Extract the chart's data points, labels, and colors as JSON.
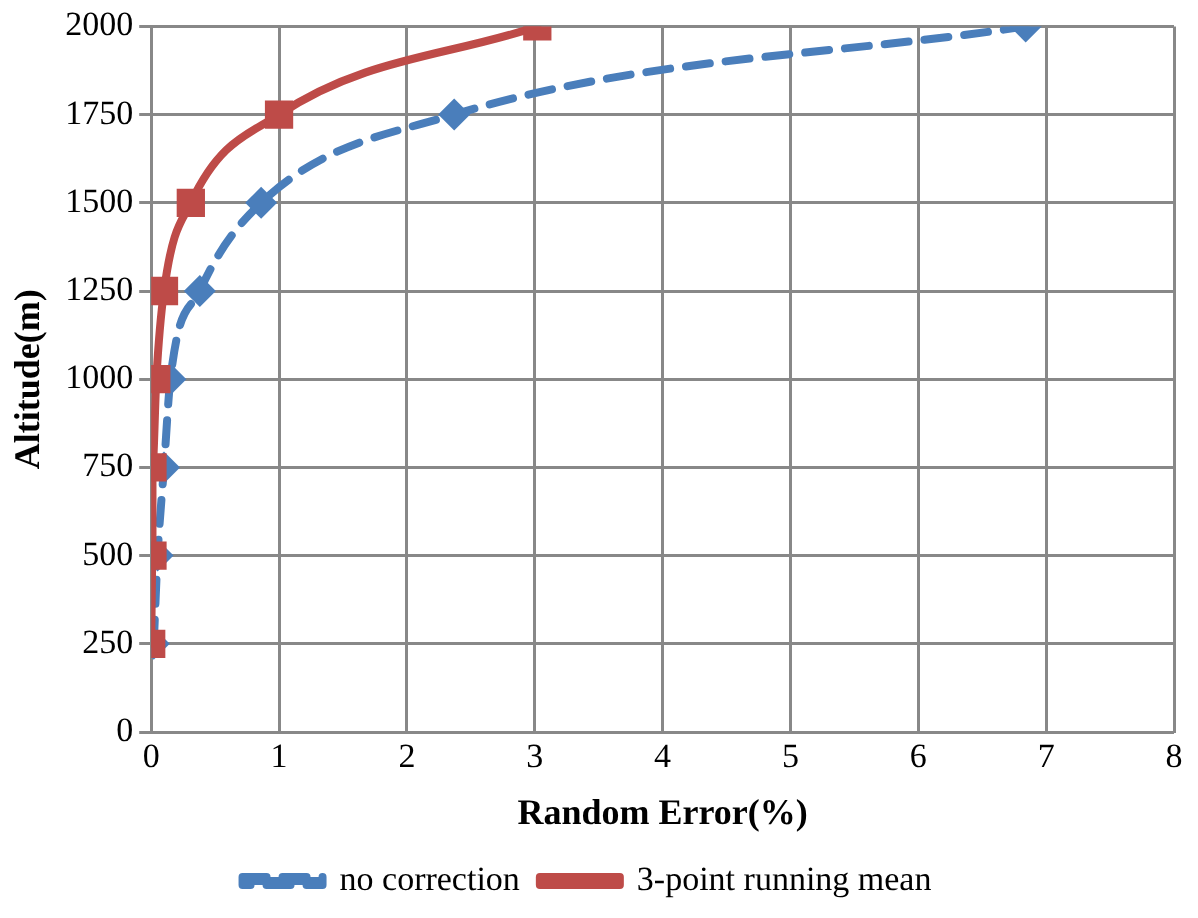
{
  "chart_data": {
    "type": "line",
    "xlabel": "Random Error(%)",
    "ylabel": "Altitude(m)",
    "xlim": [
      0,
      8
    ],
    "xticks": [
      0,
      1,
      2,
      3,
      4,
      5,
      6,
      7,
      8
    ],
    "ylim": [
      0,
      2000
    ],
    "yticks": [
      0,
      250,
      500,
      750,
      1000,
      1250,
      1500,
      1750,
      2000
    ],
    "grid": true,
    "legend": "bottom",
    "series": [
      {
        "name": "no correction",
        "color": "#4a7ebb",
        "marker": "diamond",
        "line_style": "dashed",
        "x": [
          0.02,
          0.05,
          0.1,
          0.15,
          0.38,
          0.86,
          2.37,
          6.84
        ],
        "values": [
          250,
          500,
          750,
          1000,
          1250,
          1500,
          1750,
          2000
        ]
      },
      {
        "name": "3-point running mean",
        "color": "#be4b48",
        "marker": "square",
        "line_style": "solid",
        "x": [
          0,
          0.01,
          0.01,
          0.04,
          0.1,
          0.31,
          1.0,
          3.02
        ],
        "values": [
          250,
          500,
          750,
          1000,
          1250,
          1500,
          1750,
          2000
        ]
      }
    ]
  }
}
